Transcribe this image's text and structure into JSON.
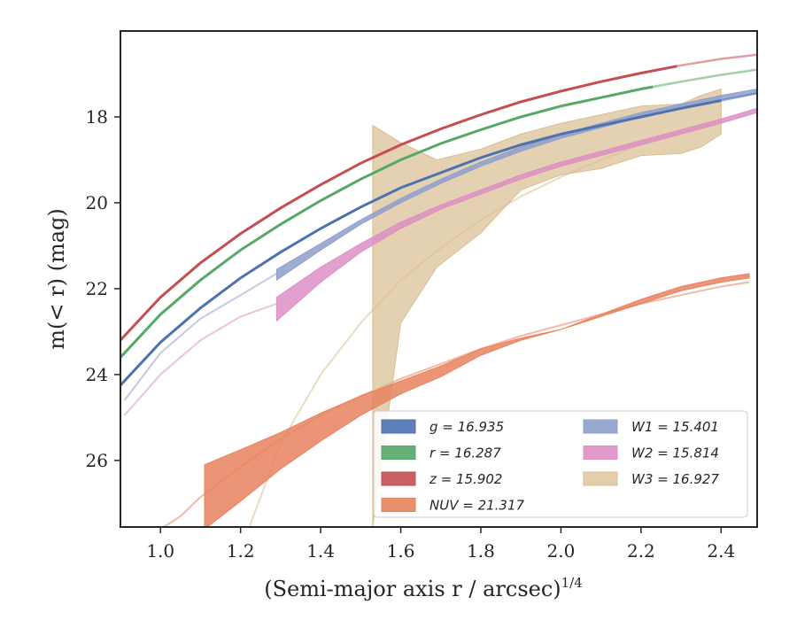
{
  "chart_data": {
    "type": "line",
    "xlabel": "(Semi-major axis r / arcsec)",
    "xlabel_var": "r",
    "xlabel_power": "1/4",
    "ylabel": "m(< r) (mag)",
    "xlim": [
      0.9,
      2.49
    ],
    "ylim": [
      27.55,
      16.0
    ],
    "y_inverted": true,
    "xticks": [
      1.0,
      1.2,
      1.4,
      1.6,
      1.8,
      2.0,
      2.2,
      2.4
    ],
    "xtick_labels": [
      "1.0",
      "1.2",
      "1.4",
      "1.6",
      "1.8",
      "2.0",
      "2.2",
      "2.4"
    ],
    "yticks": [
      18,
      20,
      22,
      24,
      26
    ],
    "ytick_labels": [
      "18",
      "20",
      "22",
      "24",
      "26"
    ],
    "grid": false,
    "legend_position": "lower-right",
    "series": [
      {
        "name": "g = 16.935",
        "band": "g",
        "mag": "16.935",
        "color": "#4c72b0",
        "kind": "curve",
        "legend_col": 0,
        "x": [
          0.9,
          1.0,
          1.1,
          1.2,
          1.3,
          1.4,
          1.5,
          1.6,
          1.7,
          1.8,
          1.9,
          2.0,
          2.1,
          2.2,
          2.3,
          2.4,
          2.49
        ],
        "y": [
          24.25,
          23.25,
          22.45,
          21.75,
          21.15,
          20.6,
          20.1,
          19.65,
          19.3,
          18.95,
          18.65,
          18.4,
          18.2,
          18.0,
          17.8,
          17.62,
          17.45
        ],
        "solid_range": [
          0.9,
          2.4
        ]
      },
      {
        "name": "r = 16.287",
        "band": "r",
        "mag": "16.287",
        "color": "#55a868",
        "kind": "curve",
        "legend_col": 0,
        "x": [
          0.9,
          1.0,
          1.1,
          1.2,
          1.3,
          1.4,
          1.5,
          1.6,
          1.7,
          1.8,
          1.9,
          2.0,
          2.1,
          2.2,
          2.3,
          2.4,
          2.49
        ],
        "y": [
          23.6,
          22.6,
          21.8,
          21.1,
          20.5,
          19.95,
          19.45,
          19.0,
          18.62,
          18.3,
          18.0,
          17.75,
          17.55,
          17.35,
          17.18,
          17.02,
          16.9
        ],
        "solid_range": [
          0.9,
          2.23
        ]
      },
      {
        "name": "z = 15.902",
        "band": "z",
        "mag": "15.902",
        "color": "#c44e52",
        "kind": "curve",
        "legend_col": 0,
        "x": [
          0.9,
          1.0,
          1.1,
          1.2,
          1.3,
          1.4,
          1.5,
          1.6,
          1.7,
          1.8,
          1.9,
          2.0,
          2.1,
          2.2,
          2.3,
          2.4,
          2.49
        ],
        "y": [
          23.2,
          22.2,
          21.4,
          20.72,
          20.12,
          19.58,
          19.08,
          18.65,
          18.28,
          17.95,
          17.65,
          17.4,
          17.18,
          16.98,
          16.8,
          16.65,
          16.55
        ],
        "solid_range": [
          0.9,
          2.29
        ]
      },
      {
        "name": "NUV = 21.317",
        "band": "NUV",
        "mag": "21.317",
        "color": "#e8825e",
        "kind": "band",
        "legend_col": 0,
        "x": [
          1.11,
          1.2,
          1.3,
          1.4,
          1.5,
          1.6,
          1.7,
          1.8,
          1.9,
          2.0,
          2.1,
          2.2,
          2.3,
          2.4,
          2.47
        ],
        "y_lo": [
          26.1,
          25.75,
          25.35,
          24.9,
          24.5,
          24.15,
          23.8,
          23.4,
          23.15,
          22.95,
          22.65,
          22.35,
          22.05,
          21.85,
          21.75
        ],
        "y_hi": [
          27.6,
          26.95,
          26.2,
          25.55,
          24.95,
          24.45,
          24.05,
          23.55,
          23.2,
          22.95,
          22.6,
          22.25,
          21.95,
          21.75,
          21.65
        ],
        "model_x": [
          1.0,
          1.05,
          1.1,
          1.2,
          1.3,
          1.4,
          1.5,
          1.6,
          1.7,
          1.8,
          1.9,
          2.0,
          2.1,
          2.2,
          2.3,
          2.4,
          2.47
        ],
        "model_y": [
          27.6,
          27.3,
          26.85,
          26.15,
          25.5,
          24.95,
          24.5,
          24.1,
          23.75,
          23.4,
          23.1,
          22.85,
          22.6,
          22.35,
          22.15,
          21.95,
          21.85
        ]
      },
      {
        "name": "W1 = 15.401",
        "band": "W1",
        "mag": "15.401",
        "color": "#8e9fcc",
        "kind": "band",
        "legend_col": 1,
        "x": [
          1.29,
          1.4,
          1.5,
          1.6,
          1.7,
          1.8,
          1.9,
          2.0,
          2.1,
          2.2,
          2.3,
          2.4,
          2.49
        ],
        "y_lo": [
          21.55,
          20.95,
          20.4,
          19.9,
          19.45,
          19.05,
          18.7,
          18.4,
          18.15,
          17.9,
          17.7,
          17.5,
          17.35
        ],
        "y_hi": [
          21.8,
          21.1,
          20.5,
          20.0,
          19.55,
          19.15,
          18.8,
          18.5,
          18.25,
          18.0,
          17.8,
          17.6,
          17.45
        ],
        "model_x": [
          0.91,
          1.0,
          1.1,
          1.2,
          1.29
        ],
        "model_y": [
          24.6,
          23.5,
          22.7,
          22.15,
          21.65
        ]
      },
      {
        "name": "W2 = 15.814",
        "band": "W2",
        "mag": "15.814",
        "color": "#dd8fc5",
        "kind": "band",
        "legend_col": 1,
        "x": [
          1.29,
          1.4,
          1.5,
          1.6,
          1.7,
          1.8,
          1.9,
          2.0,
          2.1,
          2.2,
          2.3,
          2.4,
          2.49
        ],
        "y_lo": [
          22.2,
          21.5,
          20.95,
          20.45,
          20.05,
          19.7,
          19.35,
          19.05,
          18.8,
          18.55,
          18.3,
          18.05,
          17.8
        ],
        "y_hi": [
          22.75,
          21.85,
          21.15,
          20.6,
          20.15,
          19.8,
          19.45,
          19.15,
          18.9,
          18.65,
          18.4,
          18.15,
          17.9
        ],
        "model_x": [
          0.91,
          1.0,
          1.1,
          1.2,
          1.29
        ],
        "model_y": [
          24.95,
          24.0,
          23.2,
          22.65,
          22.35
        ]
      },
      {
        "name": "W3 = 16.927",
        "band": "W3",
        "mag": "16.927",
        "color": "#d9bd90",
        "kind": "band",
        "legend_col": 1,
        "x": [
          1.53,
          1.6,
          1.69,
          1.8,
          1.9,
          2.0,
          2.1,
          2.2,
          2.3,
          2.35,
          2.4
        ],
        "y_lo": [
          27.55,
          22.8,
          21.5,
          20.7,
          19.7,
          19.35,
          19.2,
          18.9,
          18.85,
          18.7,
          18.4
        ],
        "y_hi": [
          18.2,
          18.6,
          19.0,
          18.75,
          18.4,
          18.15,
          17.95,
          17.75,
          17.7,
          17.5,
          17.35
        ],
        "model_x": [
          1.22,
          1.3,
          1.4,
          1.5,
          1.6,
          1.7,
          1.8,
          1.9,
          2.0,
          2.1,
          2.2,
          2.3,
          2.4
        ],
        "model_y": [
          27.6,
          25.6,
          24.0,
          22.8,
          21.8,
          21.05,
          20.4,
          19.85,
          19.4,
          19.0,
          18.65,
          18.35,
          18.1
        ]
      }
    ]
  }
}
